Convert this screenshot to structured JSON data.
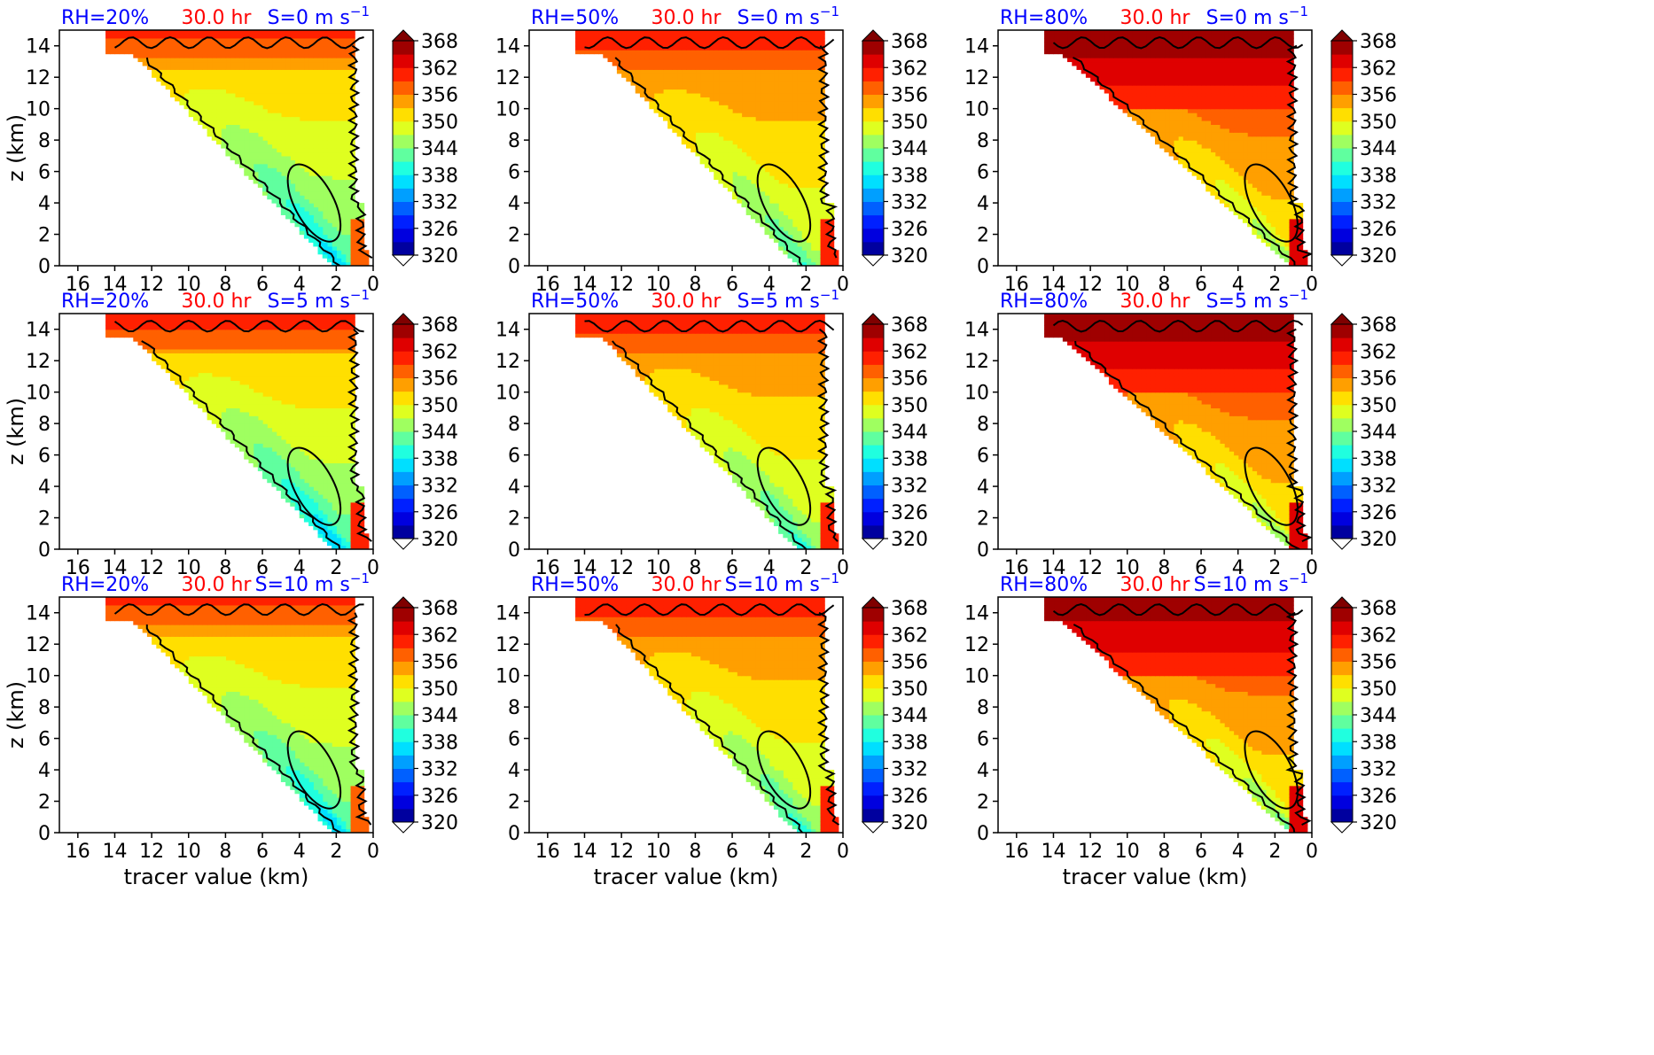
{
  "chart_data": {
    "type": "heatmap",
    "layout": "3x3 grid of filled-contour panels, each with its own colorbar",
    "xlabel": "tracer value (km)",
    "ylabel": "z (km)",
    "xlim": [
      17,
      0
    ],
    "x_reversed": true,
    "ylim": [
      0,
      15
    ],
    "xticks": [
      16,
      14,
      12,
      10,
      8,
      6,
      4,
      2,
      0
    ],
    "yticks": [
      0,
      2,
      4,
      6,
      8,
      10,
      12,
      14
    ],
    "grid": false,
    "colorbar": {
      "colormap": "jet",
      "min": 320,
      "max": 368,
      "ticks": [
        320,
        326,
        332,
        338,
        344,
        350,
        356,
        362,
        368
      ],
      "extend": "both",
      "under_color": "#ffffff"
    },
    "colors": {
      "rh_label": "#0000ff",
      "time_label": "#ff0000",
      "shear_label": "#0000ff",
      "contour_line": "#000000"
    },
    "panels": [
      {
        "row": 0,
        "col": 0,
        "rh": "RH=20%",
        "time": "30.0 hr",
        "shear": "S=0 m s",
        "shear_exp": "−1",
        "rh_value": 20,
        "shear_value": 0,
        "field_range": [
          333,
          360
        ]
      },
      {
        "row": 0,
        "col": 1,
        "rh": "RH=50%",
        "time": "30.0 hr",
        "shear": "S=0 m s",
        "shear_exp": "−1",
        "rh_value": 50,
        "shear_value": 0,
        "field_range": [
          338,
          362
        ]
      },
      {
        "row": 0,
        "col": 2,
        "rh": "RH=80%",
        "time": "30.0 hr",
        "shear": "S=0 m s",
        "shear_exp": "−1",
        "rh_value": 80,
        "shear_value": 0,
        "field_range": [
          341,
          366
        ]
      },
      {
        "row": 1,
        "col": 0,
        "rh": "RH=20%",
        "time": "30.0 hr",
        "shear": "S=5 m s",
        "shear_exp": "−1",
        "rh_value": 20,
        "shear_value": 5,
        "field_range": [
          332,
          361
        ]
      },
      {
        "row": 1,
        "col": 1,
        "rh": "RH=50%",
        "time": "30.0 hr",
        "shear": "S=5 m s",
        "shear_exp": "−1",
        "rh_value": 50,
        "shear_value": 5,
        "field_range": [
          337,
          362
        ]
      },
      {
        "row": 1,
        "col": 2,
        "rh": "RH=80%",
        "time": "30.0 hr",
        "shear": "S=5 m s",
        "shear_exp": "−1",
        "rh_value": 80,
        "shear_value": 5,
        "field_range": [
          341,
          366
        ]
      },
      {
        "row": 2,
        "col": 0,
        "rh": "RH=20%",
        "time": "30.0 hr",
        "shear": "S=10 m s",
        "shear_exp": "−1",
        "rh_value": 20,
        "shear_value": 10,
        "field_range": [
          333,
          360
        ]
      },
      {
        "row": 2,
        "col": 1,
        "rh": "RH=50%",
        "time": "30.0 hr",
        "shear": "S=10 m s",
        "shear_exp": "−1",
        "rh_value": 50,
        "shear_value": 10,
        "field_range": [
          337,
          362
        ]
      },
      {
        "row": 2,
        "col": 2,
        "rh": "RH=80%",
        "time": "30.0 hr",
        "shear": "S=10 m s",
        "shear_exp": "−1",
        "rh_value": 80,
        "shear_value": 10,
        "field_range": [
          340,
          366
        ]
      }
    ]
  }
}
